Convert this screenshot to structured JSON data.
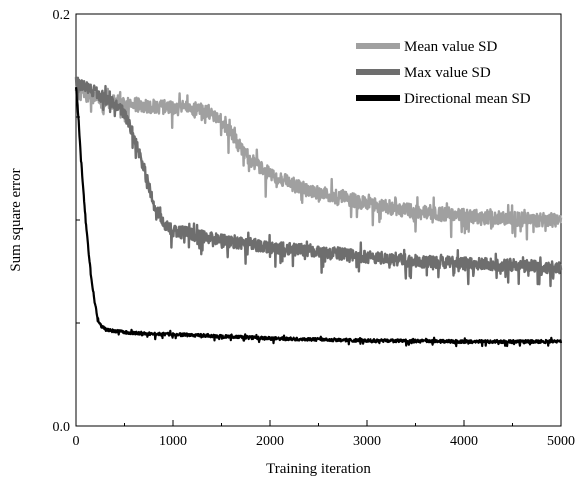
{
  "chart_data": {
    "type": "line",
    "xlabel": "Training iteration",
    "ylabel": "Sum square error",
    "xlim": [
      0,
      5000
    ],
    "ylim": [
      0.0,
      0.2
    ],
    "x_ticks": [
      "0",
      "1000",
      "2000",
      "3000",
      "4000",
      "5000"
    ],
    "y_ticks": [
      "0.0",
      "0.2"
    ],
    "grid": false,
    "legend_position": "top-right",
    "series": [
      {
        "name": "Mean value SD",
        "color": "#a0a0a0",
        "noise": 0.007,
        "x": [
          0,
          100,
          300,
          600,
          900,
          1200,
          1400,
          1500,
          1600,
          1700,
          1800,
          2000,
          2300,
          2600,
          3000,
          3500,
          4000,
          4500,
          5000
        ],
        "y": [
          0.162,
          0.161,
          0.158,
          0.156,
          0.155,
          0.154,
          0.152,
          0.148,
          0.142,
          0.135,
          0.129,
          0.122,
          0.116,
          0.112,
          0.108,
          0.104,
          0.102,
          0.1005,
          0.1
        ]
      },
      {
        "name": "Max value SD",
        "color": "#6e6e6e",
        "noise": 0.006,
        "x": [
          0,
          100,
          200,
          300,
          400,
          500,
          600,
          700,
          800,
          900,
          1000,
          1200,
          1500,
          2000,
          2500,
          3000,
          3500,
          4000,
          4500,
          5000
        ],
        "y": [
          0.167,
          0.165,
          0.162,
          0.159,
          0.157,
          0.152,
          0.14,
          0.125,
          0.108,
          0.098,
          0.095,
          0.093,
          0.09,
          0.087,
          0.085,
          0.082,
          0.08,
          0.079,
          0.078,
          0.077
        ]
      },
      {
        "name": "Directional mean SD",
        "color": "#000000",
        "noise": 0.0015,
        "x": [
          0,
          25,
          50,
          75,
          100,
          125,
          150,
          175,
          200,
          225,
          250,
          300,
          400,
          600,
          1000,
          2000,
          3000,
          4000,
          5000
        ],
        "y": [
          0.165,
          0.15,
          0.13,
          0.115,
          0.1,
          0.087,
          0.075,
          0.066,
          0.058,
          0.052,
          0.049,
          0.047,
          0.046,
          0.045,
          0.0445,
          0.0425,
          0.0415,
          0.041,
          0.041
        ]
      }
    ]
  }
}
